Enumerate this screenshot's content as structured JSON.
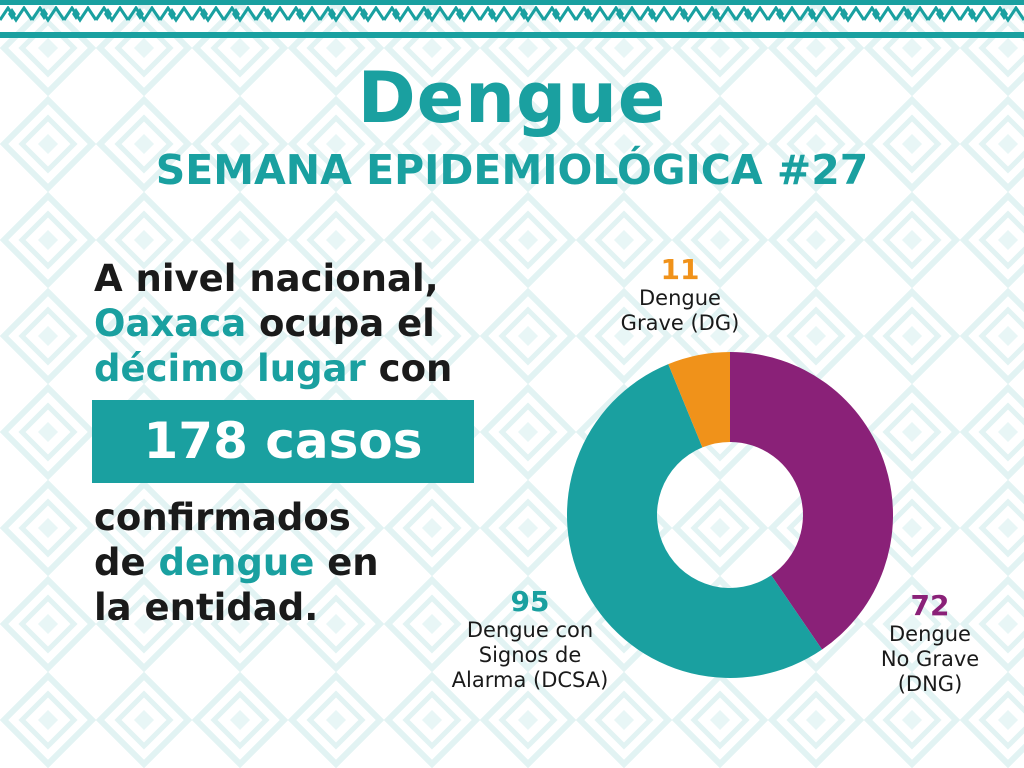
{
  "header": {
    "title": "Dengue",
    "subtitle": "SEMANA EPIDEMIOLÓGICA #27"
  },
  "summary": {
    "line1": "A nivel nacional,",
    "line2_highlight": "Oaxaca",
    "line2_rest": " ocupa el",
    "line3_highlight": "décimo lugar",
    "line3_rest": " con",
    "cases_box": "178 casos",
    "line4": "confirmados",
    "line5_start": "de ",
    "line5_highlight": "dengue",
    "line5_rest": " en",
    "line6": "la entidad."
  },
  "colors": {
    "accent": "#1aa0a0",
    "dng": "#8a2178",
    "dcsa": "#1aa0a0",
    "dg": "#f0921a"
  },
  "chart_data": {
    "type": "pie",
    "donut": true,
    "categories": [
      "Dengue No Grave (DNG)",
      "Dengue con Signos de Alarma (DCSA)",
      "Dengue Grave (DG)"
    ],
    "values": [
      72,
      95,
      11
    ],
    "colors": [
      "#8a2178",
      "#1aa0a0",
      "#f0921a"
    ],
    "labels": {
      "dg": {
        "value": "11",
        "line1": "Dengue",
        "line2": "Grave (DG)"
      },
      "dcsa": {
        "value": "95",
        "line1": "Dengue con",
        "line2": "Signos de",
        "line3": "Alarma (DCSA)"
      },
      "dng": {
        "value": "72",
        "line1": "Dengue",
        "line2": "No Grave",
        "line3": "(DNG)"
      }
    }
  }
}
